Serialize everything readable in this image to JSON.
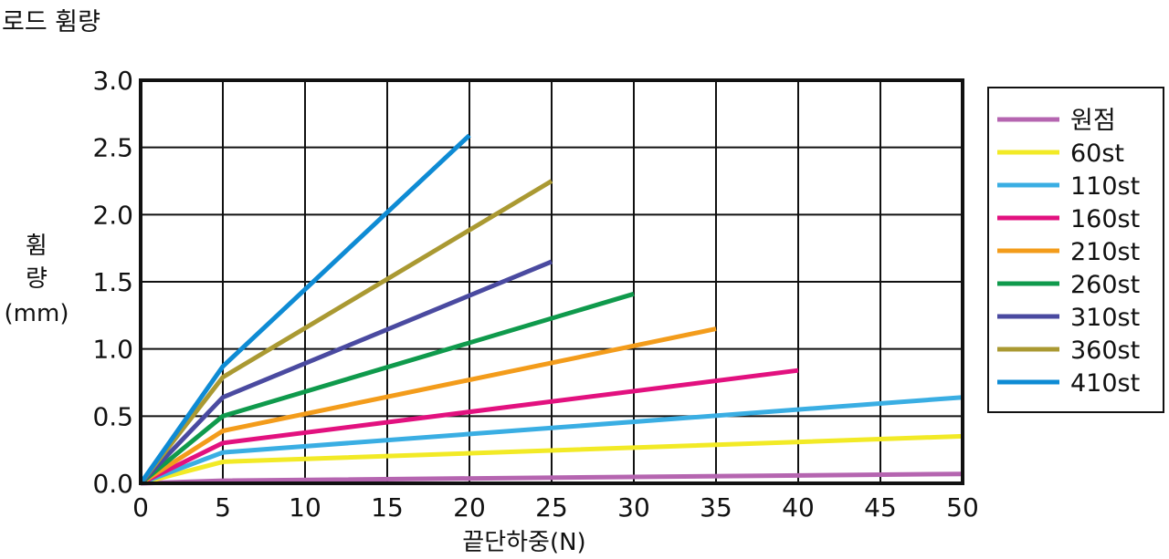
{
  "chart_data": {
    "type": "line",
    "title": "로드 휨량",
    "xlabel": "끝단하중(N)",
    "ylabel_lines": [
      "휨",
      "량",
      "(mm)"
    ],
    "xlim": [
      0,
      50
    ],
    "ylim": [
      0,
      3.0
    ],
    "x_ticks": [
      0,
      5,
      10,
      15,
      20,
      25,
      30,
      35,
      40,
      45,
      50
    ],
    "y_ticks": [
      "0.0",
      "0.5",
      "1.0",
      "1.5",
      "2.0",
      "2.5",
      "3.0"
    ],
    "grid": true,
    "legend_position": "right",
    "series": [
      {
        "name": "원점",
        "color": "#b565b0",
        "points": [
          [
            0,
            0
          ],
          [
            5,
            0.02
          ],
          [
            50,
            0.07
          ]
        ]
      },
      {
        "name": "60st",
        "color": "#f2ea26",
        "points": [
          [
            0,
            0
          ],
          [
            5,
            0.16
          ],
          [
            50,
            0.35
          ]
        ]
      },
      {
        "name": "110st",
        "color": "#3aaee3",
        "points": [
          [
            0,
            0
          ],
          [
            5,
            0.23
          ],
          [
            50,
            0.64
          ]
        ]
      },
      {
        "name": "160st",
        "color": "#e2117f",
        "points": [
          [
            0,
            0
          ],
          [
            5,
            0.3
          ],
          [
            40,
            0.84
          ]
        ]
      },
      {
        "name": "210st",
        "color": "#f39c1b",
        "points": [
          [
            0,
            0
          ],
          [
            5,
            0.39
          ],
          [
            35,
            1.15
          ]
        ]
      },
      {
        "name": "260st",
        "color": "#0f9a4c",
        "points": [
          [
            0,
            0
          ],
          [
            5,
            0.5
          ],
          [
            30,
            1.41
          ]
        ]
      },
      {
        "name": "310st",
        "color": "#4a4aa0",
        "points": [
          [
            0,
            0
          ],
          [
            5,
            0.64
          ],
          [
            25,
            1.65
          ]
        ]
      },
      {
        "name": "360st",
        "color": "#aa9932",
        "points": [
          [
            0,
            0
          ],
          [
            5,
            0.79
          ],
          [
            25,
            2.25
          ]
        ]
      },
      {
        "name": "410st",
        "color": "#0e8bd4",
        "points": [
          [
            0,
            0
          ],
          [
            5,
            0.87
          ],
          [
            20,
            2.59
          ]
        ]
      }
    ]
  }
}
